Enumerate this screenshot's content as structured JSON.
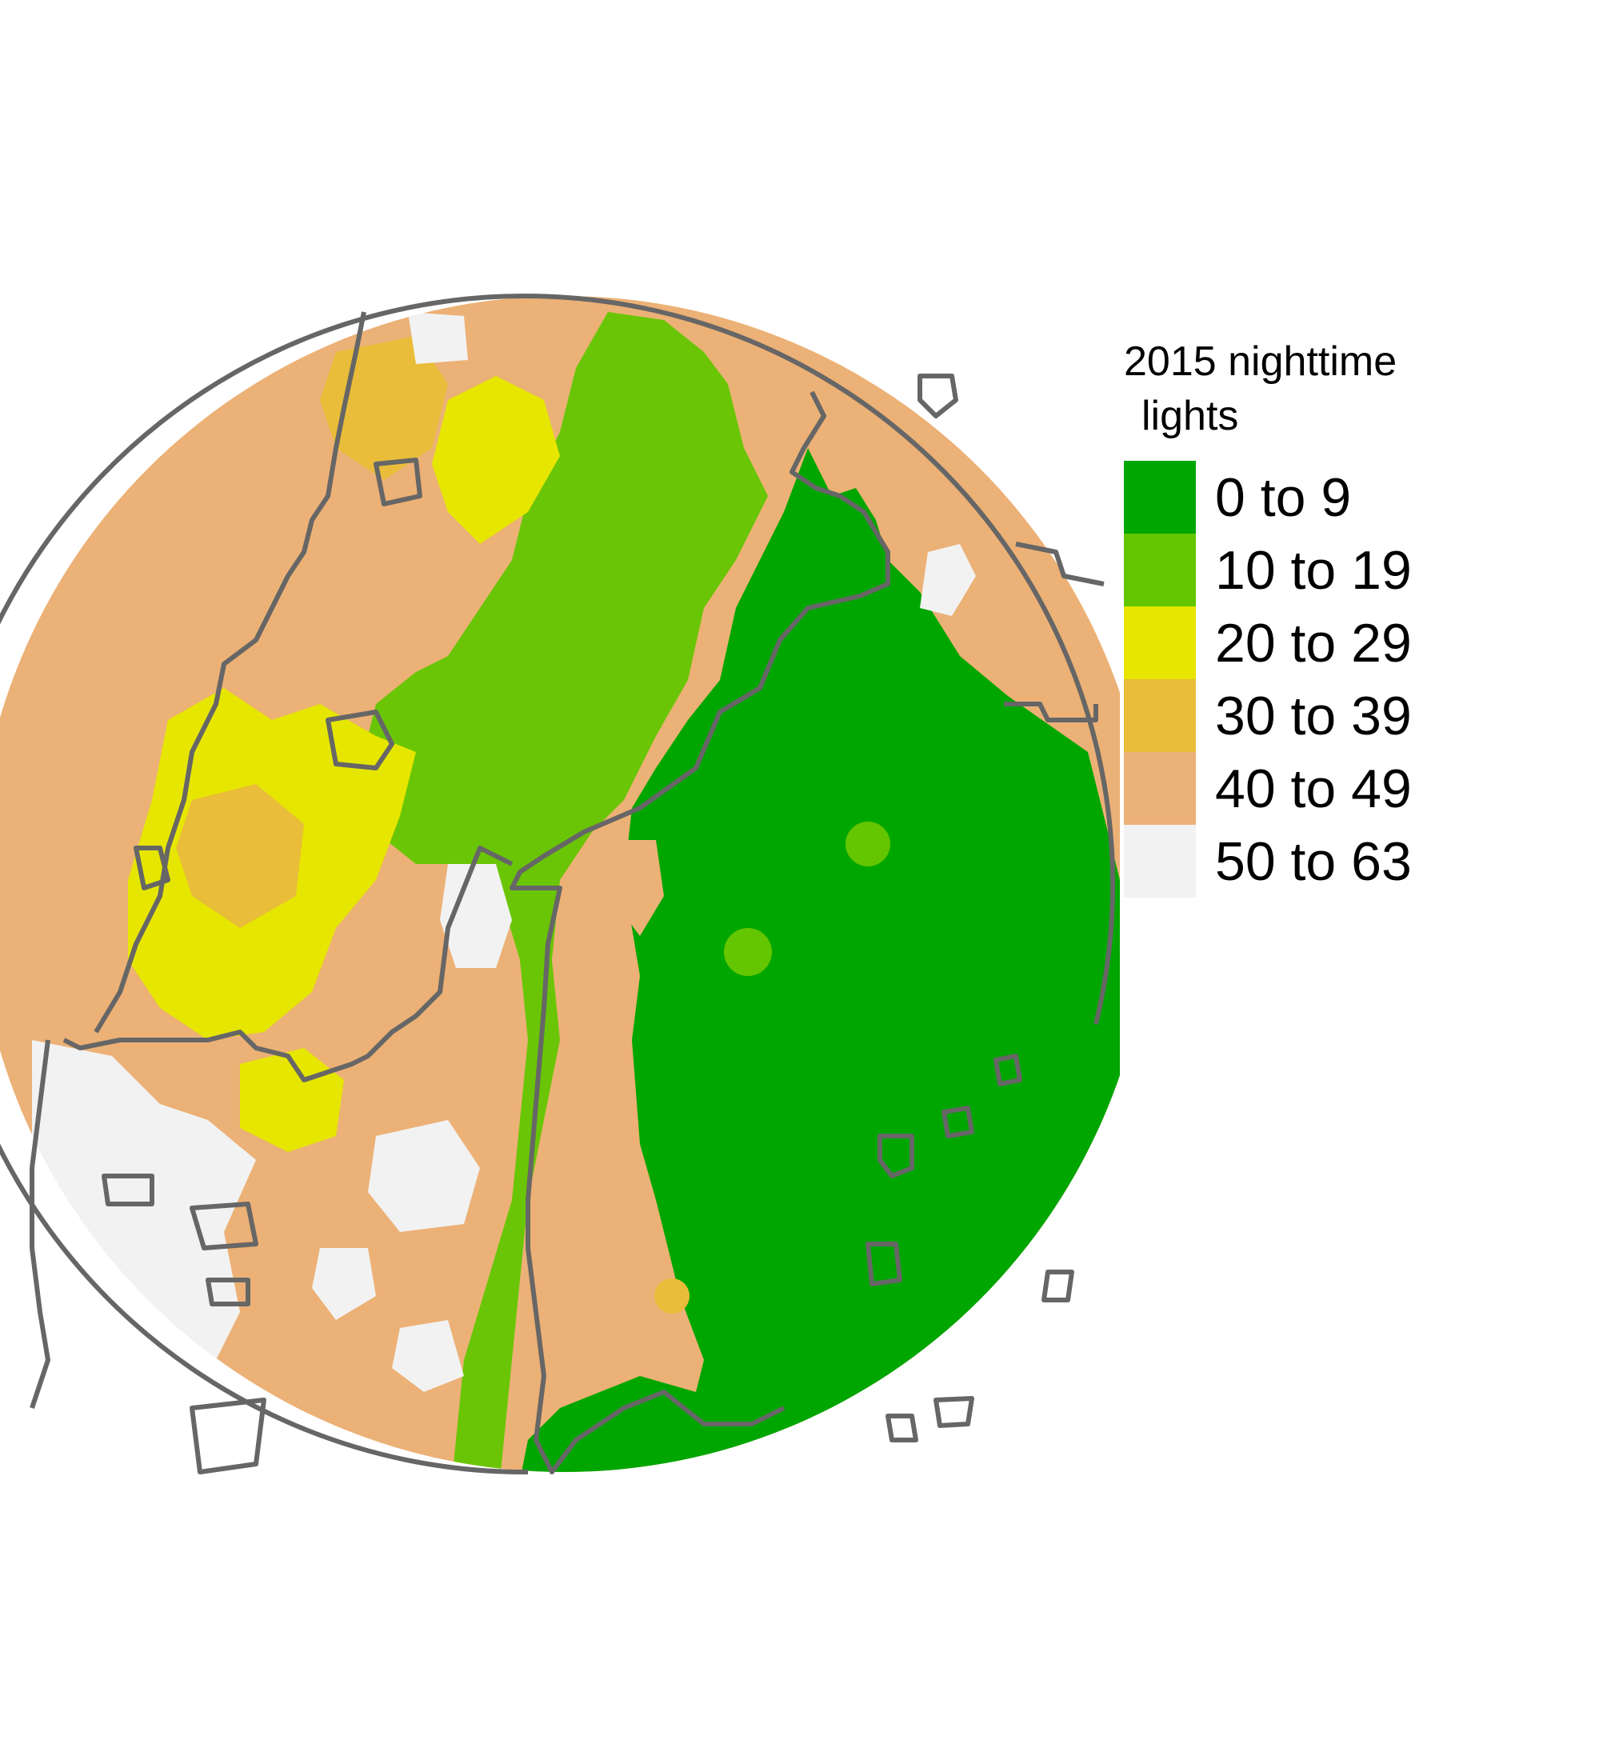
{
  "legend": {
    "title_line1": "2015 nighttime",
    "title_line2": "lights",
    "classes": [
      {
        "label": "0 to 9",
        "color": "#00A600"
      },
      {
        "label": "10 to 19",
        "color": "#63C600"
      },
      {
        "label": "20 to 29",
        "color": "#E6E600"
      },
      {
        "label": "30 to 39",
        "color": "#E9BD3A"
      },
      {
        "label": "40 to 49",
        "color": "#ECB176"
      },
      {
        "label": "50 to 63",
        "color": "#F2F2F2"
      }
    ]
  },
  "colors": {
    "boundary": "#666666",
    "background": "#FFFFFF"
  }
}
